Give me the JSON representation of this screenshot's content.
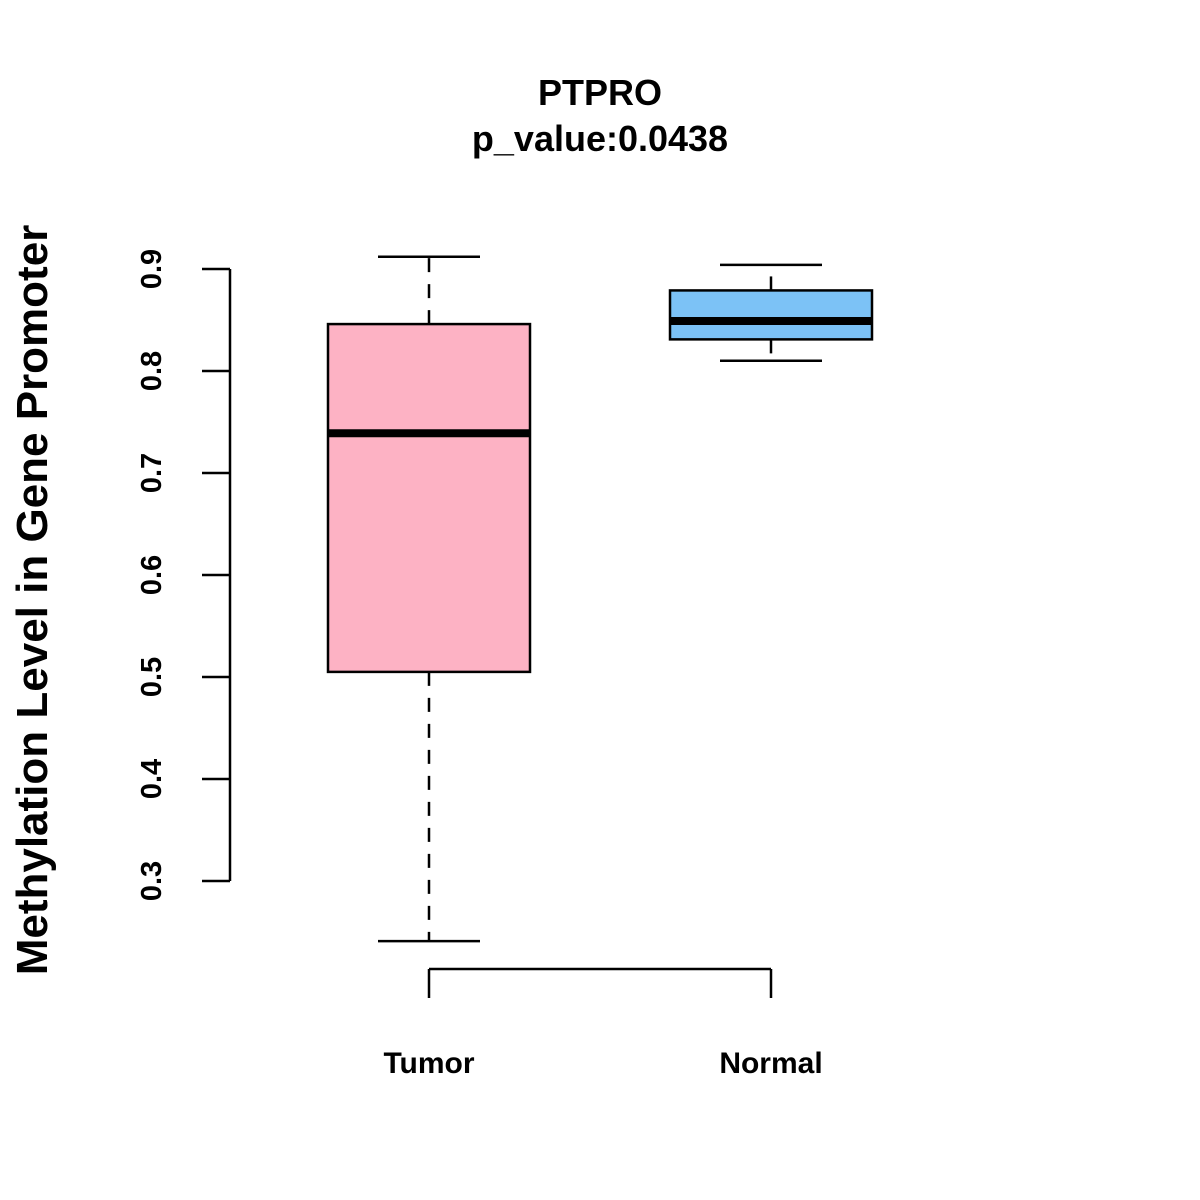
{
  "chart_data": {
    "type": "box",
    "title": "PTPRO",
    "subtitle": "p_value:0.0438",
    "xlabel": "",
    "ylabel": "Methylation Level in Gene Promoter",
    "ylim": [
      0.21,
      0.93
    ],
    "yticks": [
      0.3,
      0.4,
      0.5,
      0.6,
      0.7,
      0.8,
      0.9
    ],
    "ytick_labels": [
      "0.3",
      "0.4",
      "0.5",
      "0.6",
      "0.7",
      "0.8",
      "0.9"
    ],
    "categories": [
      "Tumor",
      "Normal"
    ],
    "boxes": [
      {
        "name": "Tumor",
        "min": 0.241,
        "q1": 0.505,
        "median": 0.739,
        "q3": 0.846,
        "max": 0.912,
        "color": "#FDB2C4"
      },
      {
        "name": "Normal",
        "min": 0.81,
        "q1": 0.831,
        "median": 0.849,
        "q3": 0.879,
        "max": 0.904,
        "color": "#7CC2F6"
      }
    ],
    "grid": false,
    "legend": "none"
  }
}
